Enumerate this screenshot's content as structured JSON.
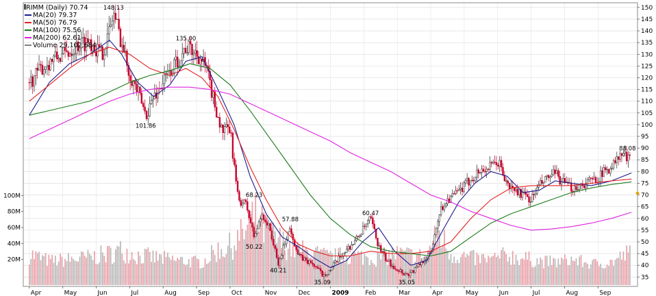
{
  "chart_data": {
    "type": "line",
    "title": "RIMM (Daily) 70.74",
    "legend": [
      {
        "name": "MA(20) 79.37",
        "color": "#1a1a8c"
      },
      {
        "name": "MA(50) 76.79",
        "color": "#e02020"
      },
      {
        "name": "MA(100) 75.56",
        "color": "#1a7a1a"
      },
      {
        "name": "MA(200) 62.61",
        "color": "#e020e0"
      },
      {
        "name": "Volume 29,102,684",
        "color": "#808080"
      }
    ],
    "legend_placement": "top-left",
    "x_tick_labels": [
      "Apr",
      "May",
      "Jun",
      "Jul",
      "Aug",
      "Sep",
      "Oct",
      "Nov",
      "Dec",
      "2009",
      "Feb",
      "Mar",
      "Apr",
      "May",
      "Jun",
      "Jul",
      "Aug",
      "Sep"
    ],
    "y_price_ticks": [
      35,
      40,
      45,
      50,
      55,
      60,
      65,
      70,
      75,
      80,
      85,
      90,
      95,
      100,
      105,
      110,
      115,
      120,
      125,
      130,
      135,
      140,
      145,
      150
    ],
    "y_price_range": [
      31,
      152
    ],
    "y_volume_ticks": [
      "20M",
      "40M",
      "60M",
      "80M",
      "100M"
    ],
    "y_volume_values": [
      20,
      40,
      60,
      80,
      100
    ],
    "y_volume_range": [
      0,
      120
    ],
    "last_price_marker": 70.74,
    "annotations": [
      {
        "text": "148.13",
        "date": 2008.46,
        "price": 148.13
      },
      {
        "text": "135.00",
        "date": 2008.64,
        "price": 135.0
      },
      {
        "text": "101.86",
        "date": 2008.54,
        "price": 101.86
      },
      {
        "text": "68.23",
        "date": 2008.81,
        "price": 68.23
      },
      {
        "text": "57.88",
        "date": 2008.9,
        "price": 57.88
      },
      {
        "text": "50.22",
        "date": 2008.81,
        "price": 50.22
      },
      {
        "text": "40.21",
        "date": 2008.87,
        "price": 40.21
      },
      {
        "text": "35.09",
        "date": 2008.98,
        "price": 35.09
      },
      {
        "text": "60.47",
        "date": 2009.1,
        "price": 60.47
      },
      {
        "text": "35.05",
        "date": 2009.19,
        "price": 35.05
      },
      {
        "text": "88.08",
        "date": 2009.74,
        "price": 88.08
      }
    ],
    "price_path": [
      [
        2008.25,
        118
      ],
      [
        2008.28,
        124
      ],
      [
        2008.31,
        128
      ],
      [
        2008.34,
        130
      ],
      [
        2008.37,
        134
      ],
      [
        2008.4,
        136
      ],
      [
        2008.43,
        130
      ],
      [
        2008.45,
        140
      ],
      [
        2008.46,
        148
      ],
      [
        2008.48,
        135
      ],
      [
        2008.5,
        122
      ],
      [
        2008.52,
        114
      ],
      [
        2008.54,
        104
      ],
      [
        2008.56,
        112
      ],
      [
        2008.59,
        120
      ],
      [
        2008.61,
        125
      ],
      [
        2008.64,
        133
      ],
      [
        2008.67,
        130
      ],
      [
        2008.69,
        124
      ],
      [
        2008.71,
        110
      ],
      [
        2008.73,
        97
      ],
      [
        2008.75,
        98
      ],
      [
        2008.77,
        68
      ],
      [
        2008.79,
        66
      ],
      [
        2008.81,
        52
      ],
      [
        2008.83,
        62
      ],
      [
        2008.85,
        55
      ],
      [
        2008.87,
        40
      ],
      [
        2008.89,
        52
      ],
      [
        2008.9,
        56
      ],
      [
        2008.92,
        44
      ],
      [
        2008.94,
        42
      ],
      [
        2008.96,
        40
      ],
      [
        2008.98,
        36
      ],
      [
        2009.0,
        38
      ],
      [
        2009.03,
        45
      ],
      [
        2009.06,
        50
      ],
      [
        2009.08,
        55
      ],
      [
        2009.1,
        60
      ],
      [
        2009.12,
        48
      ],
      [
        2009.14,
        42
      ],
      [
        2009.17,
        38
      ],
      [
        2009.19,
        36
      ],
      [
        2009.21,
        38
      ],
      [
        2009.23,
        42
      ],
      [
        2009.25,
        45
      ],
      [
        2009.27,
        62
      ],
      [
        2009.29,
        68
      ],
      [
        2009.31,
        70
      ],
      [
        2009.33,
        73
      ],
      [
        2009.35,
        77
      ],
      [
        2009.37,
        80
      ],
      [
        2009.4,
        82
      ],
      [
        2009.42,
        84
      ],
      [
        2009.44,
        74
      ],
      [
        2009.46,
        72
      ],
      [
        2009.48,
        70
      ],
      [
        2009.5,
        68
      ],
      [
        2009.52,
        74
      ],
      [
        2009.54,
        77
      ],
      [
        2009.56,
        79
      ],
      [
        2009.58,
        75
      ],
      [
        2009.6,
        73
      ],
      [
        2009.62,
        74
      ],
      [
        2009.65,
        76
      ],
      [
        2009.67,
        78
      ],
      [
        2009.69,
        81
      ],
      [
        2009.71,
        84
      ],
      [
        2009.73,
        88
      ],
      [
        2009.74,
        85
      ]
    ],
    "series": [
      {
        "name": "MA(20)",
        "color": "#1a1a8c",
        "points": [
          [
            2008.25,
            104
          ],
          [
            2008.3,
            118
          ],
          [
            2008.35,
            126
          ],
          [
            2008.4,
            130
          ],
          [
            2008.45,
            136
          ],
          [
            2008.48,
            130
          ],
          [
            2008.52,
            118
          ],
          [
            2008.56,
            112
          ],
          [
            2008.6,
            117
          ],
          [
            2008.64,
            127
          ],
          [
            2008.68,
            129
          ],
          [
            2008.72,
            115
          ],
          [
            2008.76,
            100
          ],
          [
            2008.8,
            78
          ],
          [
            2008.84,
            62
          ],
          [
            2008.88,
            52
          ],
          [
            2008.92,
            48
          ],
          [
            2008.96,
            43
          ],
          [
            2009.0,
            39
          ],
          [
            2009.04,
            42
          ],
          [
            2009.08,
            50
          ],
          [
            2009.12,
            56
          ],
          [
            2009.16,
            46
          ],
          [
            2009.2,
            40
          ],
          [
            2009.24,
            42
          ],
          [
            2009.28,
            55
          ],
          [
            2009.32,
            67
          ],
          [
            2009.36,
            75
          ],
          [
            2009.4,
            80
          ],
          [
            2009.44,
            78
          ],
          [
            2009.48,
            71
          ],
          [
            2009.52,
            72
          ],
          [
            2009.56,
            76
          ],
          [
            2009.6,
            75
          ],
          [
            2009.65,
            74
          ],
          [
            2009.7,
            76
          ],
          [
            2009.75,
            79.4
          ]
        ]
      },
      {
        "name": "MA(50)",
        "color": "#e02020",
        "points": [
          [
            2008.25,
            110
          ],
          [
            2008.3,
            117
          ],
          [
            2008.35,
            124
          ],
          [
            2008.4,
            130
          ],
          [
            2008.45,
            133
          ],
          [
            2008.5,
            130
          ],
          [
            2008.55,
            124
          ],
          [
            2008.6,
            121
          ],
          [
            2008.64,
            124
          ],
          [
            2008.68,
            120
          ],
          [
            2008.72,
            112
          ],
          [
            2008.76,
            98
          ],
          [
            2008.8,
            82
          ],
          [
            2008.84,
            68
          ],
          [
            2008.88,
            56
          ],
          [
            2008.92,
            49
          ],
          [
            2008.96,
            46
          ],
          [
            2009.0,
            44
          ],
          [
            2009.05,
            44
          ],
          [
            2009.1,
            46
          ],
          [
            2009.15,
            45
          ],
          [
            2009.2,
            45
          ],
          [
            2009.25,
            46
          ],
          [
            2009.3,
            50
          ],
          [
            2009.35,
            60
          ],
          [
            2009.4,
            68
          ],
          [
            2009.45,
            73
          ],
          [
            2009.5,
            74
          ],
          [
            2009.55,
            74
          ],
          [
            2009.6,
            74
          ],
          [
            2009.65,
            75
          ],
          [
            2009.7,
            76
          ],
          [
            2009.75,
            76.8
          ]
        ]
      },
      {
        "name": "MA(100)",
        "color": "#1a7a1a",
        "points": [
          [
            2008.25,
            104
          ],
          [
            2008.3,
            106
          ],
          [
            2008.35,
            108
          ],
          [
            2008.4,
            110
          ],
          [
            2008.45,
            114
          ],
          [
            2008.5,
            118
          ],
          [
            2008.55,
            121
          ],
          [
            2008.6,
            123
          ],
          [
            2008.65,
            126
          ],
          [
            2008.7,
            124
          ],
          [
            2008.75,
            117
          ],
          [
            2008.8,
            106
          ],
          [
            2008.85,
            94
          ],
          [
            2008.9,
            82
          ],
          [
            2008.95,
            70
          ],
          [
            2009.0,
            60
          ],
          [
            2009.05,
            53
          ],
          [
            2009.1,
            48
          ],
          [
            2009.15,
            46
          ],
          [
            2009.2,
            45
          ],
          [
            2009.25,
            44
          ],
          [
            2009.3,
            46
          ],
          [
            2009.35,
            52
          ],
          [
            2009.4,
            58
          ],
          [
            2009.45,
            62
          ],
          [
            2009.5,
            65
          ],
          [
            2009.55,
            68
          ],
          [
            2009.6,
            71
          ],
          [
            2009.65,
            73
          ],
          [
            2009.7,
            74.5
          ],
          [
            2009.75,
            75.6
          ]
        ]
      },
      {
        "name": "MA(200)",
        "color": "#e020e0",
        "points": [
          [
            2008.25,
            94
          ],
          [
            2008.3,
            98
          ],
          [
            2008.35,
            102
          ],
          [
            2008.4,
            106
          ],
          [
            2008.45,
            110
          ],
          [
            2008.5,
            113
          ],
          [
            2008.55,
            115
          ],
          [
            2008.6,
            116
          ],
          [
            2008.65,
            116
          ],
          [
            2008.7,
            115
          ],
          [
            2008.75,
            113
          ],
          [
            2008.8,
            109
          ],
          [
            2008.85,
            105
          ],
          [
            2008.9,
            101
          ],
          [
            2008.95,
            97
          ],
          [
            2009.0,
            93
          ],
          [
            2009.05,
            88
          ],
          [
            2009.1,
            84
          ],
          [
            2009.15,
            80
          ],
          [
            2009.2,
            75
          ],
          [
            2009.25,
            70
          ],
          [
            2009.3,
            67
          ],
          [
            2009.35,
            63
          ],
          [
            2009.4,
            60
          ],
          [
            2009.45,
            57
          ],
          [
            2009.5,
            55
          ],
          [
            2009.55,
            55.5
          ],
          [
            2009.6,
            56.5
          ],
          [
            2009.65,
            58
          ],
          [
            2009.7,
            60
          ],
          [
            2009.75,
            62.6
          ]
        ]
      }
    ],
    "volume_envelope": [
      [
        2008.25,
        30
      ],
      [
        2008.3,
        20
      ],
      [
        2008.35,
        22
      ],
      [
        2008.4,
        25
      ],
      [
        2008.45,
        30
      ],
      [
        2008.48,
        35
      ],
      [
        2008.52,
        28
      ],
      [
        2008.56,
        25
      ],
      [
        2008.6,
        22
      ],
      [
        2008.64,
        20
      ],
      [
        2008.68,
        18
      ],
      [
        2008.72,
        35
      ],
      [
        2008.75,
        40
      ],
      [
        2008.78,
        55
      ],
      [
        2008.81,
        80
      ],
      [
        2008.84,
        60
      ],
      [
        2008.88,
        45
      ],
      [
        2008.92,
        35
      ],
      [
        2008.96,
        30
      ],
      [
        2009.0,
        25
      ],
      [
        2009.04,
        28
      ],
      [
        2009.08,
        26
      ],
      [
        2009.12,
        24
      ],
      [
        2009.16,
        30
      ],
      [
        2009.2,
        28
      ],
      [
        2009.24,
        26
      ],
      [
        2009.27,
        60
      ],
      [
        2009.3,
        30
      ],
      [
        2009.35,
        24
      ],
      [
        2009.4,
        22
      ],
      [
        2009.44,
        28
      ],
      [
        2009.48,
        24
      ],
      [
        2009.52,
        20
      ],
      [
        2009.56,
        18
      ],
      [
        2009.6,
        22
      ],
      [
        2009.65,
        16
      ],
      [
        2009.7,
        18
      ],
      [
        2009.74,
        30
      ]
    ]
  }
}
